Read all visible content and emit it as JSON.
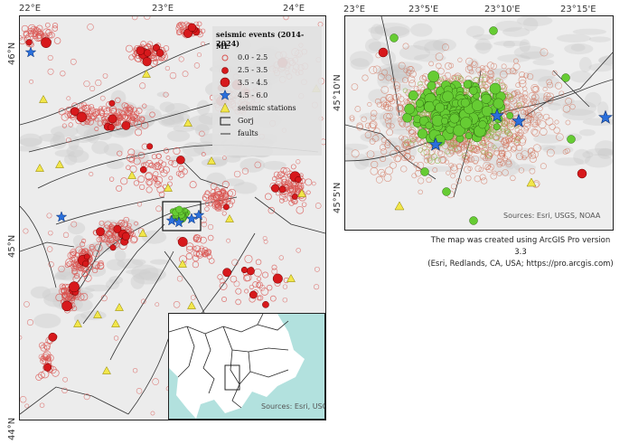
{
  "main_map": {
    "lon_ticks": [
      "22°E",
      "23°E",
      "24°E"
    ],
    "lat_ticks": [
      "46°N",
      "45°N",
      "44°N"
    ],
    "legend": {
      "title": "seismic events (2014-2024)",
      "ml_label": "ML",
      "classes": [
        {
          "label": "0.0 - 2.5",
          "symbol": "circle-hollow",
          "color": "#d9534f"
        },
        {
          "label": "2.5 - 3.5",
          "symbol": "circle-filled",
          "color": "#d7191c"
        },
        {
          "label": "3.5 - 4.5",
          "symbol": "circle-filled-large",
          "color": "#d7191c"
        },
        {
          "label": "4.5 - 6.0",
          "symbol": "star",
          "color": "#2a6fdb"
        }
      ],
      "stations_label": "seismic stations",
      "gorj_label": "Gorj",
      "faults_label": "faults"
    },
    "locator": {
      "source": "Sources: Esri, USGS, NOAA"
    }
  },
  "inset_map": {
    "lon_ticks": [
      "23°E",
      "23°5'E",
      "23°10'E",
      "23°15'E"
    ],
    "lat_ticks": [
      "45°10'N",
      "45°5'N"
    ],
    "source": "Sources: Esri, USGS, NOAA"
  },
  "caption": {
    "line1": "The map was created using ArcGIS Pro version 3.3",
    "line2": "(Esri, Redlands, CA, USA; https://pro.arcgis.com)"
  },
  "colors": {
    "event_small": "#d9534f",
    "event_medium": "#d7191c",
    "event_gorj": "#66cc33",
    "star": "#2a6fdb",
    "station": "#f2e64a",
    "fault": "#333333",
    "sea": "#9fd9d6"
  }
}
